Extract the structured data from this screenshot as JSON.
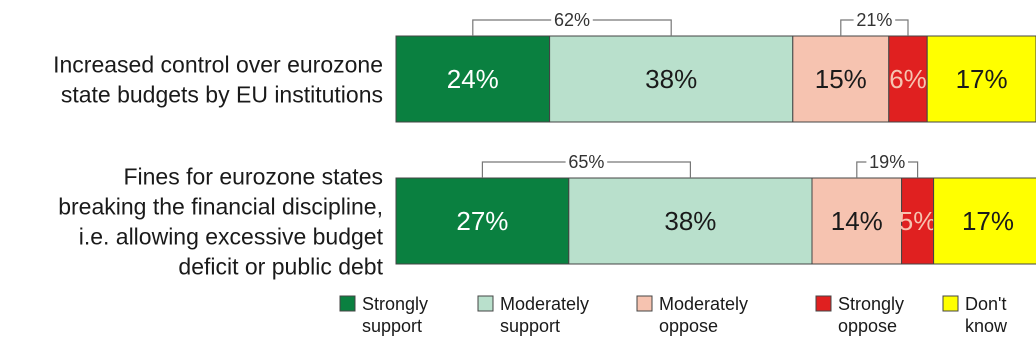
{
  "chart_data": {
    "type": "bar",
    "orientation": "horizontal",
    "stacked": true,
    "percent_scale": true,
    "xlim": [
      0,
      100
    ],
    "grid": false,
    "legend_position": "bottom",
    "categories": [
      [
        "Increased control over eurozone",
        "state budgets by EU institutions"
      ],
      [
        "Fines for eurozone states",
        "breaking the financial discipline,",
        "i.e. allowing excessive budget",
        "deficit or public debt"
      ]
    ],
    "series": [
      {
        "name": [
          "Strongly",
          "support"
        ],
        "color": "#0a8040",
        "label_color": "#ffffff",
        "values": [
          24,
          27
        ],
        "labels": [
          "24%",
          "27%"
        ]
      },
      {
        "name": [
          "Moderately",
          "support"
        ],
        "color": "#b9e0cc",
        "label_color": "#1a1a1a",
        "values": [
          38,
          38
        ],
        "labels": [
          "38%",
          "38%"
        ]
      },
      {
        "name": [
          "Moderately",
          "oppose"
        ],
        "color": "#f6c3b0",
        "label_color": "#1a1a1a",
        "values": [
          15,
          14
        ],
        "labels": [
          "15%",
          "14%"
        ]
      },
      {
        "name": [
          "Strongly",
          "oppose"
        ],
        "color": "#e02020",
        "label_color": "#f6c3b0",
        "values": [
          6,
          5
        ],
        "labels": [
          "6%",
          "5%"
        ]
      },
      {
        "name": [
          "Don't",
          "know"
        ],
        "color": "#ffff00",
        "label_color": "#1a1a1a",
        "values": [
          17,
          17
        ],
        "labels": [
          "17%",
          "17%"
        ]
      }
    ],
    "annotations": [
      {
        "kind": "support-total",
        "labels": [
          "62%",
          "65%"
        ]
      },
      {
        "kind": "oppose-total",
        "labels": [
          "21%",
          "19%"
        ]
      }
    ]
  }
}
